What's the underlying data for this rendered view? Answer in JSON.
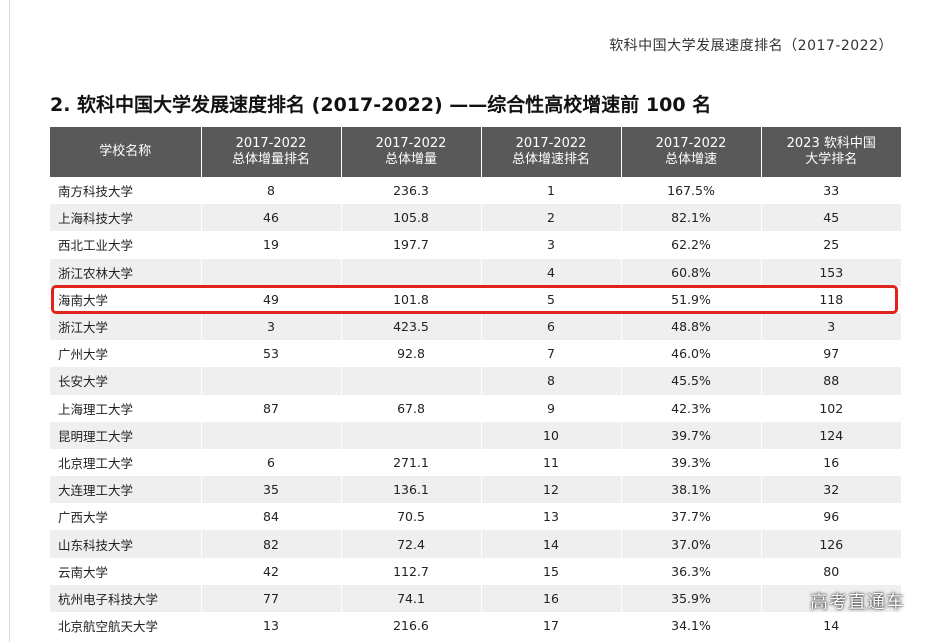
{
  "header_note": "软科中国大学发展速度排名（2017-2022）",
  "section_title": "2. 软科中国大学发展速度排名 (2017-2022) ——综合性高校增速前 100 名",
  "table": {
    "headers": [
      {
        "line1": "学校名称",
        "line2": ""
      },
      {
        "line1": "2017-2022",
        "line2": "总体增量排名"
      },
      {
        "line1": "2017-2022",
        "line2": "总体增量"
      },
      {
        "line1": "2017-2022",
        "line2": "总体增速排名"
      },
      {
        "line1": "2017-2022",
        "line2": "总体增速"
      },
      {
        "line1": "2023 软科中国",
        "line2": "大学排名"
      }
    ],
    "rows": [
      [
        "南方科技大学",
        "8",
        "236.3",
        "1",
        "167.5%",
        "33"
      ],
      [
        "上海科技大学",
        "46",
        "105.8",
        "2",
        "82.1%",
        "45"
      ],
      [
        "西北工业大学",
        "19",
        "197.7",
        "3",
        "62.2%",
        "25"
      ],
      [
        "浙江农林大学",
        "",
        "",
        "4",
        "60.8%",
        "153"
      ],
      [
        "海南大学",
        "49",
        "101.8",
        "5",
        "51.9%",
        "118"
      ],
      [
        "浙江大学",
        "3",
        "423.5",
        "6",
        "48.8%",
        "3"
      ],
      [
        "广州大学",
        "53",
        "92.8",
        "7",
        "46.0%",
        "97"
      ],
      [
        "长安大学",
        "",
        "",
        "8",
        "45.5%",
        "88"
      ],
      [
        "上海理工大学",
        "87",
        "67.8",
        "9",
        "42.3%",
        "102"
      ],
      [
        "昆明理工大学",
        "",
        "",
        "10",
        "39.7%",
        "124"
      ],
      [
        "北京理工大学",
        "6",
        "271.1",
        "11",
        "39.3%",
        "16"
      ],
      [
        "大连理工大学",
        "35",
        "136.1",
        "12",
        "38.1%",
        "32"
      ],
      [
        "广西大学",
        "84",
        "70.5",
        "13",
        "37.7%",
        "96"
      ],
      [
        "山东科技大学",
        "82",
        "72.4",
        "14",
        "37.0%",
        "126"
      ],
      [
        "云南大学",
        "42",
        "112.7",
        "15",
        "36.3%",
        "80"
      ],
      [
        "杭州电子科技大学",
        "77",
        "74.1",
        "16",
        "35.9%",
        ""
      ],
      [
        "北京航空航天大学",
        "13",
        "216.6",
        "17",
        "34.1%",
        "14"
      ]
    ],
    "highlighted_row": "海南大学"
  },
  "highlight_color": "#e0231c",
  "header_bg_color": "#595959",
  "watermark": "高考直通车"
}
